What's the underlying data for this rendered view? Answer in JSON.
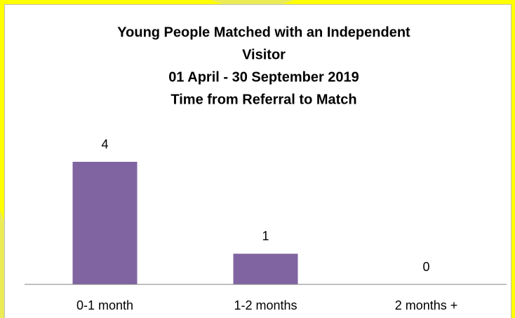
{
  "chart_data": {
    "type": "bar",
    "title": [
      "Young People Matched with an Independent",
      "Visitor",
      "01 April - 30 September 2019",
      "Time from Referral to Match"
    ],
    "categories": [
      "0-1 month",
      "1-2 months",
      "2 months +"
    ],
    "values": [
      4,
      1,
      0
    ],
    "color": "#8064a2",
    "ylim": [
      0,
      4
    ]
  }
}
